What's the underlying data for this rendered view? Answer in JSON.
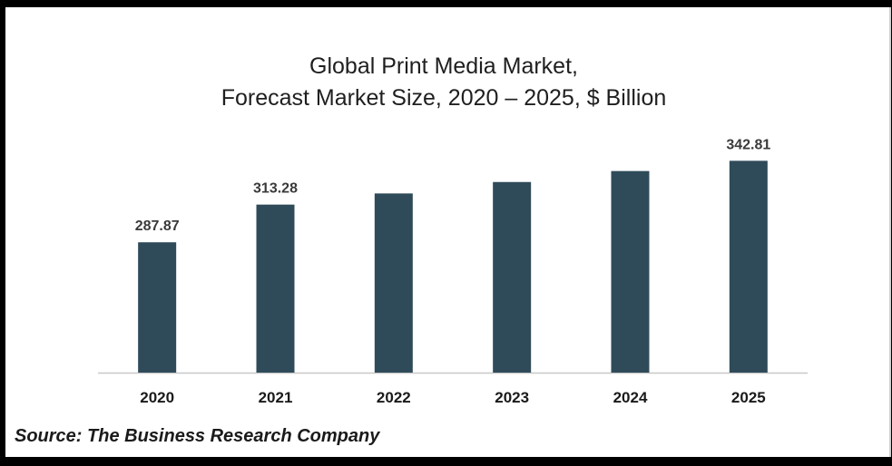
{
  "chart_data": {
    "type": "bar",
    "title_line1": "Global Print Media Market,",
    "title_line2": "Forecast Market Size, 2020 – 2025, $ Billion",
    "categories": [
      "2020",
      "2021",
      "2022",
      "2023",
      "2024",
      "2025"
    ],
    "values": [
      287.87,
      313.28,
      320.8,
      328.5,
      335.9,
      342.81
    ],
    "data_labels": [
      "287.87",
      "313.28",
      "",
      "",
      "",
      "342.81"
    ],
    "bar_color": "#2f4b5a",
    "axis_color": "#c8c8c8",
    "ylim": [
      200,
      350
    ],
    "grid": false,
    "legend": "none"
  },
  "source": "Source: The Business Research Company"
}
